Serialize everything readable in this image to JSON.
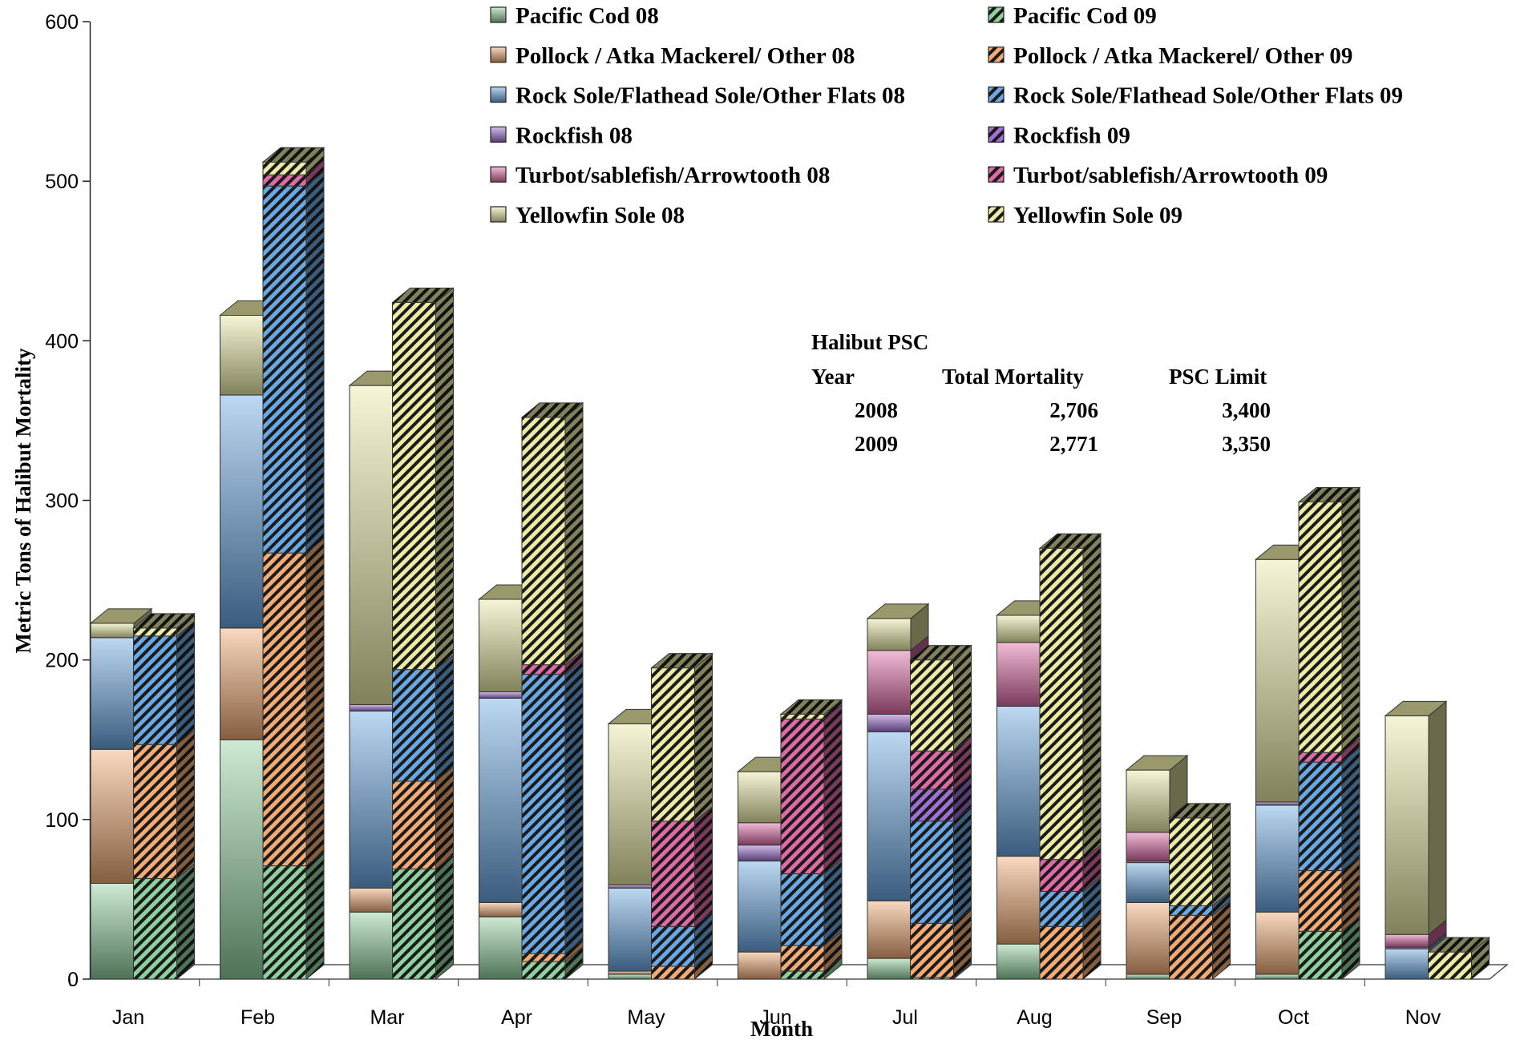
{
  "chart_data": {
    "type": "bar",
    "stacked": true,
    "three_d": true,
    "xlabel": "Month",
    "ylabel": "Metric Tons of Halibut Mortality",
    "ylim": [
      0,
      600
    ],
    "yticks": [
      "0",
      "100",
      "200",
      "300",
      "400",
      "500",
      "600"
    ],
    "categories": [
      "Jan",
      "Feb",
      "Mar",
      "Apr",
      "May",
      "Jun",
      "Jul",
      "Aug",
      "Sep",
      "Oct",
      "Nov"
    ],
    "legend_position": "top-right",
    "groups": [
      {
        "name": "Pacific Cod",
        "color": "#8fd19e"
      },
      {
        "name": "Pollock / Atka Mackerel/ Other",
        "color": "#f2ab74"
      },
      {
        "name": "Rock Sole/Flathead Sole/Other Flats",
        "color": "#6aa8e3"
      },
      {
        "name": "Rockfish",
        "color": "#9f6fd4"
      },
      {
        "name": "Turbot/sablefish/Arrowtooth",
        "color": "#e06aa6"
      },
      {
        "name": "Yellowfin Sole",
        "color": "#ebeba6"
      }
    ],
    "series": [
      {
        "name": "Pacific Cod 08",
        "year": "2008",
        "group": 0,
        "values": [
          60,
          150,
          42,
          39,
          3,
          0,
          13,
          22,
          3,
          3,
          0
        ]
      },
      {
        "name": "Pollock / Atka Mackerel/ Other 08",
        "year": "2008",
        "group": 1,
        "values": [
          84,
          70,
          15,
          9,
          2,
          17,
          36,
          55,
          45,
          39,
          0
        ]
      },
      {
        "name": "Rock Sole/Flathead Sole/Other Flats 08",
        "year": "2008",
        "group": 2,
        "values": [
          70,
          146,
          111,
          128,
          52,
          57,
          106,
          94,
          25,
          67,
          19
        ]
      },
      {
        "name": "Rockfish 08",
        "year": "2008",
        "group": 3,
        "values": [
          0,
          0,
          4,
          4,
          2,
          10,
          11,
          0,
          1,
          2,
          1
        ]
      },
      {
        "name": "Turbot/sablefish/Arrowtooth 08",
        "year": "2008",
        "group": 4,
        "values": [
          0,
          0,
          0,
          0,
          0,
          14,
          40,
          40,
          18,
          0,
          8
        ]
      },
      {
        "name": "Yellowfin Sole 08",
        "year": "2008",
        "group": 5,
        "values": [
          9,
          50,
          200,
          58,
          101,
          32,
          20,
          17,
          39,
          152,
          137
        ]
      },
      {
        "name": "Pacific Cod 09",
        "year": "2009",
        "group": 0,
        "values": [
          63,
          71,
          69,
          11,
          0,
          5,
          1,
          0,
          0,
          30,
          0
        ]
      },
      {
        "name": "Pollock / Atka Mackerel/ Other 09",
        "year": "2009",
        "group": 1,
        "values": [
          84,
          196,
          55,
          5,
          8,
          16,
          34,
          33,
          40,
          38,
          0
        ]
      },
      {
        "name": "Rock Sole/Flathead Sole/Other Flats 09",
        "year": "2009",
        "group": 2,
        "values": [
          68,
          230,
          70,
          175,
          25,
          45,
          64,
          22,
          6,
          68,
          0
        ]
      },
      {
        "name": "Rockfish 09",
        "year": "2009",
        "group": 3,
        "values": [
          0,
          0,
          0,
          0,
          0,
          0,
          20,
          0,
          0,
          0,
          0
        ]
      },
      {
        "name": "Turbot/sablefish/Arrowtooth 09",
        "year": "2009",
        "group": 4,
        "values": [
          0,
          7,
          0,
          6,
          66,
          97,
          24,
          20,
          0,
          6,
          0
        ]
      },
      {
        "name": "Yellowfin Sole 09",
        "year": "2009",
        "group": 5,
        "values": [
          5,
          8,
          230,
          155,
          96,
          3,
          57,
          195,
          55,
          157,
          17
        ]
      }
    ],
    "annotation": {
      "title": "Halibut PSC",
      "headers": [
        "Year",
        "Total Mortality",
        "PSC Limit"
      ],
      "rows": [
        [
          "2008",
          "2,706",
          "3,400"
        ],
        [
          "2009",
          "2,771",
          "3,350"
        ]
      ]
    }
  }
}
